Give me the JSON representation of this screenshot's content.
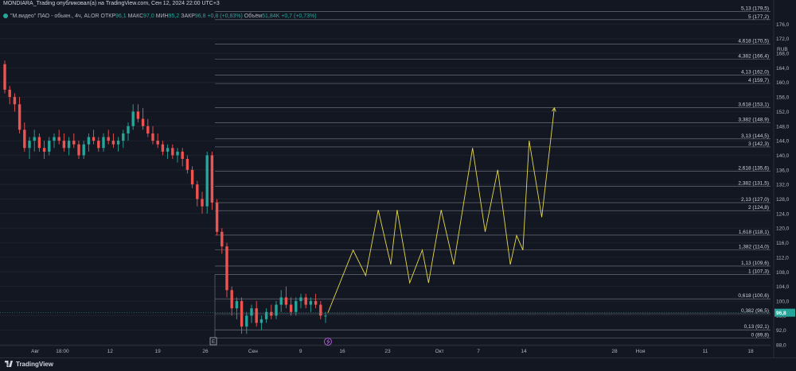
{
  "header": {
    "title": "MONDIARA_Trading опубликовал(а) на TradingView.com, Сен 12, 2024 22:00 UTC+3"
  },
  "legend": {
    "symbol": "\"М.видео\" ПАО - обыкн., 4ч, ALOR",
    "open_label": "ОТКР",
    "open": "96,1",
    "high_label": "МАКС",
    "high": "97,0",
    "low_label": "МИН",
    "low": "95,2",
    "close_label": "ЗАКР",
    "close": "96,8",
    "change": "+0,8 (+0,83%)",
    "volume_label": "Объём",
    "volume": "51,84K",
    "volume_change": "+0,7 (+0,73%)"
  },
  "footer": {
    "brand": "TradingView"
  },
  "colors": {
    "background": "#131722",
    "up": "#26a69a",
    "down": "#ef5350",
    "projection": "#e6d84a",
    "fib_line": "#787b86"
  },
  "chart_data": {
    "type": "candlestick",
    "currency": "RUB",
    "ylim": [
      88.0,
      180.0
    ],
    "y_ticks": [
      "176,0",
      "172,0",
      "168,0",
      "164,0",
      "160,0",
      "156,0",
      "152,0",
      "148,0",
      "144,0",
      "140,0",
      "136,0",
      "132,0",
      "128,0",
      "124,0",
      "120,0",
      "116,0",
      "112,0",
      "108,0",
      "104,0",
      "100,0",
      "96,0",
      "92,0",
      "88,0"
    ],
    "y_tick_values": [
      176,
      172,
      168,
      164,
      160,
      156,
      152,
      148,
      144,
      140,
      136,
      132,
      128,
      124,
      120,
      116,
      112,
      108,
      104,
      100,
      96,
      92,
      88
    ],
    "current_price_label": "96,8",
    "current_price": 96.8,
    "x_ticks": [
      "26",
      "Авг",
      "18:00",
      "12",
      "19",
      "26",
      "Сен",
      "9",
      "16",
      "23",
      "Окт",
      "7",
      "14",
      "28",
      "Ноя",
      "11",
      "18"
    ],
    "x_tick_dates": [
      "2024-07-26",
      "2024-08-01",
      "2024-08-05",
      "2024-08-12",
      "2024-08-19",
      "2024-08-26",
      "2024-09-02",
      "2024-09-09",
      "2024-09-16",
      "2024-09-23",
      "2024-10-01",
      "2024-10-07",
      "2024-10-14",
      "2024-10-28",
      "2024-11-01",
      "2024-11-11",
      "2024-11-18"
    ],
    "fib_levels": [
      {
        "label": "5,13 (179,5)",
        "value": 179.5
      },
      {
        "label": "5 (177,2)",
        "value": 177.2
      },
      {
        "label": "4,618 (170,5)",
        "value": 170.5
      },
      {
        "label": "4,382 (166,4)",
        "value": 166.4
      },
      {
        "label": "4,13 (162,0)",
        "value": 162.0
      },
      {
        "label": "4 (159,7)",
        "value": 159.7
      },
      {
        "label": "3,618 (153,1)",
        "value": 153.1
      },
      {
        "label": "3,382 (148,9)",
        "value": 148.9
      },
      {
        "label": "3,13 (144,5)",
        "value": 144.5
      },
      {
        "label": "3 (142,3)",
        "value": 142.3
      },
      {
        "label": "2,618 (135,6)",
        "value": 135.6
      },
      {
        "label": "2,382 (131,5)",
        "value": 131.5
      },
      {
        "label": "2,13 (127,0)",
        "value": 127.0
      },
      {
        "label": "2 (124,8)",
        "value": 124.8
      },
      {
        "label": "1,618 (118,1)",
        "value": 118.1
      },
      {
        "label": "1,382 (114,0)",
        "value": 114.0
      },
      {
        "label": "1,13 (109,6)",
        "value": 109.6
      },
      {
        "label": "1 (107,3)",
        "value": 107.3
      },
      {
        "label": "0,618 (100,6)",
        "value": 100.6
      },
      {
        "label": "0,382 (96,5)",
        "value": 96.5
      },
      {
        "label": "0,13 (92,1)",
        "value": 92.1
      },
      {
        "label": "0 (89,8)",
        "value": 89.8
      }
    ],
    "candles": [
      [
        0,
        165,
        166,
        157,
        158
      ],
      [
        1,
        158,
        159,
        154,
        156
      ],
      [
        2,
        156,
        157,
        152,
        154
      ],
      [
        3,
        154,
        156,
        146,
        147
      ],
      [
        4,
        147,
        149,
        141,
        142
      ],
      [
        5,
        142,
        145,
        139,
        144
      ],
      [
        6,
        144,
        147,
        141,
        145
      ],
      [
        7,
        145,
        146,
        141,
        142
      ],
      [
        8,
        142,
        144,
        139,
        141
      ],
      [
        9,
        141,
        145,
        140,
        144
      ],
      [
        10,
        144,
        146,
        142,
        145
      ],
      [
        11,
        145,
        147,
        143,
        144
      ],
      [
        12,
        144,
        146,
        141,
        142
      ],
      [
        13,
        142,
        145,
        140,
        144
      ],
      [
        14,
        144,
        146,
        142,
        143
      ],
      [
        15,
        143,
        144,
        139,
        140
      ],
      [
        16,
        140,
        144,
        139,
        143
      ],
      [
        17,
        143,
        146,
        141,
        145
      ],
      [
        18,
        145,
        147,
        143,
        144
      ],
      [
        19,
        144,
        145,
        141,
        142
      ],
      [
        20,
        142,
        146,
        141,
        145
      ],
      [
        21,
        145,
        147,
        143,
        144
      ],
      [
        22,
        144,
        146,
        142,
        143
      ],
      [
        23,
        143,
        145,
        141,
        144
      ],
      [
        24,
        144,
        147,
        142,
        146
      ],
      [
        25,
        146,
        149,
        144,
        148
      ],
      [
        26,
        148,
        154,
        147,
        152
      ],
      [
        27,
        152,
        154,
        149,
        150
      ],
      [
        28,
        150,
        153,
        147,
        148
      ],
      [
        29,
        148,
        150,
        145,
        146
      ],
      [
        30,
        146,
        148,
        143,
        144
      ],
      [
        31,
        144,
        146,
        142,
        143
      ],
      [
        32,
        143,
        144,
        140,
        141
      ],
      [
        33,
        141,
        143,
        139,
        142
      ],
      [
        34,
        142,
        143,
        139,
        140
      ],
      [
        35,
        140,
        142,
        138,
        141
      ],
      [
        36,
        141,
        142,
        137,
        139
      ],
      [
        37,
        139,
        140,
        135,
        136
      ],
      [
        38,
        136,
        137,
        131,
        132
      ],
      [
        39,
        132,
        133,
        126,
        128
      ],
      [
        40,
        128,
        130,
        124,
        126
      ],
      [
        41,
        126,
        141,
        124,
        140
      ],
      [
        42,
        140,
        141,
        125,
        127
      ],
      [
        43,
        127,
        128,
        118,
        119
      ],
      [
        44,
        119,
        120,
        113,
        115
      ],
      [
        45,
        115,
        116,
        101,
        103
      ],
      [
        46,
        103,
        104,
        96,
        98
      ],
      [
        47,
        98,
        101,
        95,
        100
      ],
      [
        48,
        100,
        101,
        91,
        93
      ],
      [
        49,
        93,
        97,
        91,
        96
      ],
      [
        50,
        96,
        99,
        94,
        98
      ],
      [
        51,
        98,
        100,
        93,
        94
      ],
      [
        52,
        94,
        96,
        92,
        95
      ],
      [
        53,
        95,
        98,
        94,
        97
      ],
      [
        54,
        97,
        99,
        95,
        96
      ],
      [
        55,
        96,
        100,
        95,
        99
      ],
      [
        56,
        99,
        103,
        97,
        101
      ],
      [
        57,
        101,
        104,
        98,
        99
      ],
      [
        58,
        99,
        101,
        96,
        97
      ],
      [
        59,
        97,
        101,
        96,
        100
      ],
      [
        60,
        100,
        102,
        98,
        101
      ],
      [
        61,
        101,
        102,
        98,
        99
      ],
      [
        62,
        99,
        101,
        97,
        100
      ],
      [
        63,
        100,
        102,
        98,
        99
      ],
      [
        64,
        99,
        100,
        95,
        96
      ],
      [
        65,
        96,
        97,
        94,
        96
      ]
    ],
    "projection": [
      [
        96.8,
        0
      ],
      [
        114,
        4
      ],
      [
        107,
        6
      ],
      [
        125,
        8
      ],
      [
        110,
        10
      ],
      [
        125,
        11
      ],
      [
        105,
        13
      ],
      [
        114,
        15
      ],
      [
        105,
        16
      ],
      [
        125,
        18
      ],
      [
        110,
        20
      ],
      [
        142,
        23
      ],
      [
        119,
        25
      ],
      [
        136,
        27
      ],
      [
        110,
        29
      ],
      [
        118,
        30
      ],
      [
        114,
        31
      ],
      [
        144,
        32
      ],
      [
        123,
        34
      ],
      [
        153,
        36
      ]
    ]
  }
}
